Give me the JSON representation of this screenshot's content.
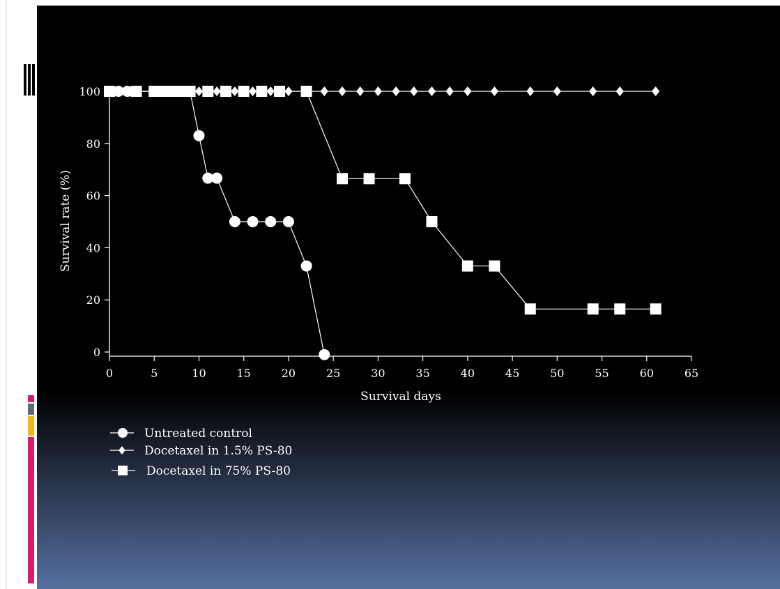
{
  "chart_data": {
    "type": "line",
    "xlabel": "Survival days",
    "ylabel": "Survival rate (%)",
    "xlim": [
      0,
      65
    ],
    "ylim": [
      0,
      100
    ],
    "x_ticks": [
      0,
      5,
      10,
      15,
      20,
      25,
      30,
      35,
      40,
      45,
      50,
      55,
      60,
      65
    ],
    "y_ticks": [
      0,
      20,
      40,
      60,
      80,
      100
    ],
    "grid": false,
    "legend_position": "bottom-left",
    "series": [
      {
        "name": "Untreated control",
        "marker": "circle",
        "points": [
          [
            0,
            100
          ],
          [
            1,
            100
          ],
          [
            2,
            100
          ],
          [
            3,
            100
          ],
          [
            5,
            100
          ],
          [
            6,
            100
          ],
          [
            7,
            100
          ],
          [
            8,
            100
          ],
          [
            9,
            100
          ],
          [
            10,
            83
          ],
          [
            11,
            66.7
          ],
          [
            12,
            66.7
          ],
          [
            14,
            50
          ],
          [
            16,
            50
          ],
          [
            18,
            50
          ],
          [
            20,
            50
          ],
          [
            22,
            33
          ],
          [
            24,
            -1
          ]
        ]
      },
      {
        "name": "Docetaxel in 1.5% PS-80",
        "marker": "diamond",
        "points": [
          [
            0,
            100
          ],
          [
            1,
            100
          ],
          [
            2,
            100
          ],
          [
            3,
            100
          ],
          [
            5,
            100
          ],
          [
            6,
            100
          ],
          [
            7,
            100
          ],
          [
            8,
            100
          ],
          [
            9,
            100
          ],
          [
            10,
            100
          ],
          [
            11,
            100
          ],
          [
            12,
            100
          ],
          [
            13,
            100
          ],
          [
            14,
            100
          ],
          [
            15,
            100
          ],
          [
            16,
            100
          ],
          [
            17,
            100
          ],
          [
            18,
            100
          ],
          [
            19,
            100
          ],
          [
            20,
            100
          ],
          [
            22,
            100
          ],
          [
            24,
            100
          ],
          [
            26,
            100
          ],
          [
            28,
            100
          ],
          [
            30,
            100
          ],
          [
            32,
            100
          ],
          [
            34,
            100
          ],
          [
            36,
            100
          ],
          [
            38,
            100
          ],
          [
            40,
            100
          ],
          [
            43,
            100
          ],
          [
            47,
            100
          ],
          [
            50,
            100
          ],
          [
            54,
            100
          ],
          [
            57,
            100
          ],
          [
            61,
            100
          ]
        ]
      },
      {
        "name": "Docetaxel in 75% PS-80",
        "marker": "square",
        "points": [
          [
            0,
            100
          ],
          [
            3,
            100
          ],
          [
            5,
            100
          ],
          [
            6,
            100
          ],
          [
            7,
            100
          ],
          [
            8,
            100
          ],
          [
            9,
            100
          ],
          [
            11,
            100
          ],
          [
            13,
            100
          ],
          [
            15,
            100
          ],
          [
            17,
            100
          ],
          [
            19,
            100
          ],
          [
            22,
            100
          ],
          [
            26,
            66.5
          ],
          [
            29,
            66.5
          ],
          [
            33,
            66.5
          ],
          [
            36,
            50
          ],
          [
            40,
            33
          ],
          [
            43,
            33
          ],
          [
            47,
            16.5
          ],
          [
            54,
            16.5
          ],
          [
            57,
            16.5
          ],
          [
            61,
            16.5
          ]
        ]
      }
    ]
  }
}
